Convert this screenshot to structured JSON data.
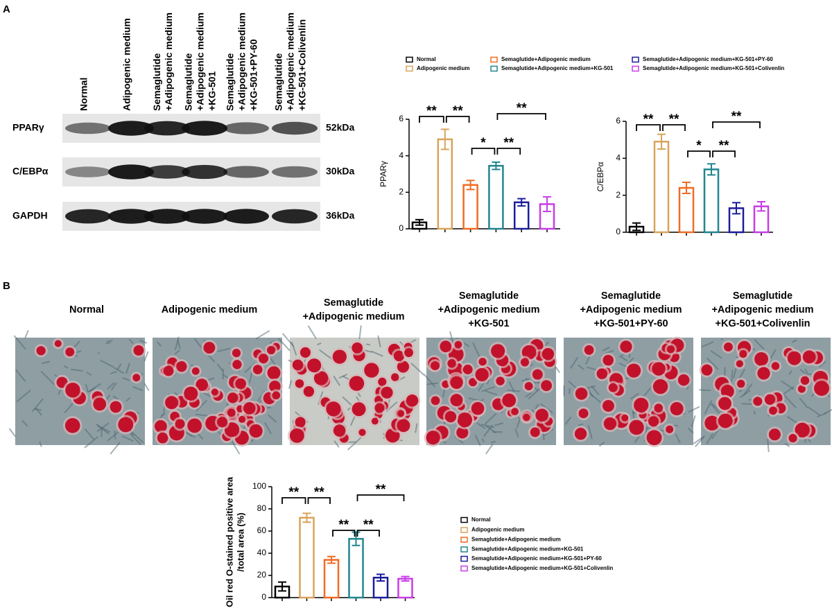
{
  "panel_labels": [
    "A",
    "B"
  ],
  "blot": {
    "lanes": [
      [
        "Normal"
      ],
      [
        "Adipogenic medium"
      ],
      [
        "Semaglutide",
        "+Adipogenic medium"
      ],
      [
        "Semaglutide",
        "+Adipogenic medium",
        "+KG-501"
      ],
      [
        "Semaglutide",
        "+Adipogenic medium",
        "+KG-501+PY-60"
      ],
      [
        "Semaglutide",
        "+Adipogenic medium",
        "+KG-501+Colivenlin"
      ]
    ],
    "rows": [
      {
        "protein": "PPARγ",
        "size": "52kDa"
      },
      {
        "protein": "C/EBPα",
        "size": "30kDa"
      },
      {
        "protein": "GAPDH",
        "size": "36kDa"
      }
    ]
  },
  "microscopy": {
    "columns": [
      [
        "Normal"
      ],
      [
        "Adipogenic medium"
      ],
      [
        "Semaglutide",
        "+Adipogenic medium"
      ],
      [
        "Semaglutide",
        "+Adipogenic medium",
        "+KG-501"
      ],
      [
        "Semaglutide",
        "+Adipogenic medium",
        "+KG-501+PY-60"
      ],
      [
        "Semaglutide",
        "+Adipogenic medium",
        "+KG-501+Colivenlin"
      ]
    ]
  },
  "chart_data": [
    {
      "type": "bar",
      "ylabel": [
        "PPARγ"
      ],
      "ylim": [
        0,
        6
      ],
      "yticks": [
        0,
        2,
        4,
        6
      ],
      "series": [
        {
          "name": "Normal",
          "color": "#000000",
          "values": [
            0.35
          ],
          "errors": [
            0.15
          ]
        },
        {
          "name": "Adipogenic medium",
          "color": "#d9a35a",
          "values": [
            4.9
          ],
          "errors": [
            0.55
          ]
        },
        {
          "name": "Semaglutide+Adipogenic medium",
          "color": "#f26b22",
          "values": [
            2.4
          ],
          "errors": [
            0.25
          ]
        },
        {
          "name": "Semaglutide+Adipogenic medium+KG-501",
          "color": "#21868f",
          "values": [
            3.45
          ],
          "errors": [
            0.2
          ]
        },
        {
          "name": "Semaglutide+Adipogenic medium+KG-501+PY-60",
          "color": "#1c1c9c",
          "values": [
            1.45
          ],
          "errors": [
            0.2
          ]
        },
        {
          "name": "Semaglutide+Adipogenic medium+KG-501+Colivenlin",
          "color": "#c83ce6",
          "values": [
            1.35
          ],
          "errors": [
            0.4
          ]
        }
      ],
      "annotations": [
        "**",
        "**",
        "*",
        "**",
        "**"
      ]
    },
    {
      "type": "bar",
      "ylabel": [
        "C/EBPα"
      ],
      "ylim": [
        0,
        6
      ],
      "yticks": [
        0,
        2,
        4,
        6
      ],
      "series": [
        {
          "color": "#000000",
          "values": [
            0.3
          ],
          "errors": [
            0.2
          ]
        },
        {
          "color": "#d9a35a",
          "values": [
            4.9
          ],
          "errors": [
            0.4
          ]
        },
        {
          "color": "#f26b22",
          "values": [
            2.4
          ],
          "errors": [
            0.3
          ]
        },
        {
          "color": "#21868f",
          "values": [
            3.4
          ],
          "errors": [
            0.3
          ]
        },
        {
          "color": "#1c1c9c",
          "values": [
            1.3
          ],
          "errors": [
            0.3
          ]
        },
        {
          "color": "#c83ce6",
          "values": [
            1.4
          ],
          "errors": [
            0.25
          ]
        }
      ],
      "annotations": [
        "**",
        "**",
        "*",
        "**",
        "**"
      ]
    },
    {
      "type": "bar",
      "ylabel": [
        "Oil red O-stained positive area",
        "/total area (%)"
      ],
      "ylim": [
        0,
        100
      ],
      "yticks": [
        0,
        20,
        40,
        60,
        80,
        100
      ],
      "series": [
        {
          "name": "Normal",
          "color": "#000000",
          "values": [
            10
          ],
          "errors": [
            4
          ]
        },
        {
          "name": "Adipogenic medium",
          "color": "#d9a35a",
          "values": [
            72
          ],
          "errors": [
            4
          ]
        },
        {
          "name": "Semaglutide+Adipogenic medium",
          "color": "#f26b22",
          "values": [
            34
          ],
          "errors": [
            3
          ]
        },
        {
          "name": "Semaglutide+Adipogenic medium+KG-501",
          "color": "#21868f",
          "values": [
            53
          ],
          "errors": [
            6
          ]
        },
        {
          "name": "Semaglutide+Adipogenic medium+KG-501+PY-60",
          "color": "#1c1c9c",
          "values": [
            18
          ],
          "errors": [
            3
          ]
        },
        {
          "name": "Semaglutide+Adipogenic medium+KG-501+Colivenlin",
          "color": "#c83ce6",
          "values": [
            17
          ],
          "errors": [
            2
          ]
        }
      ],
      "annotations": [
        "**",
        "**",
        "**",
        "**",
        "**"
      ]
    }
  ]
}
